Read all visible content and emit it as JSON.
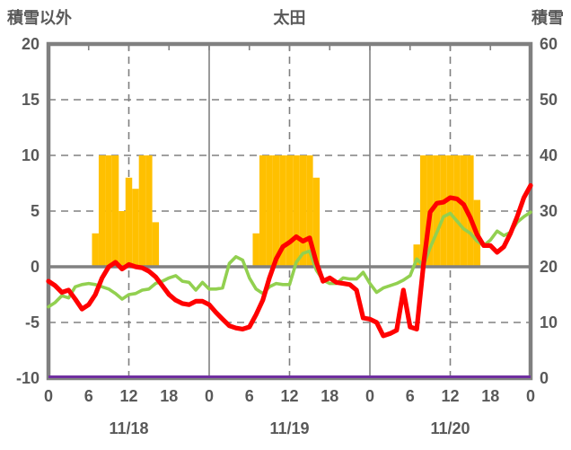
{
  "title": "太田",
  "left_axis": {
    "title": "積雪以外",
    "min": -10,
    "max": 20,
    "ticks": [
      "20",
      "15",
      "10",
      "5",
      "0",
      "-5",
      "-10"
    ],
    "tick_values": [
      20,
      15,
      10,
      5,
      0,
      -5,
      -10
    ]
  },
  "right_axis": {
    "title": "積雪",
    "min": 0,
    "max": 60,
    "ticks": [
      "60",
      "50",
      "40",
      "30",
      "20",
      "10",
      "0"
    ]
  },
  "x_axis": {
    "hour_ticks": [
      "0",
      "6",
      "12",
      "18",
      "0",
      "6",
      "12",
      "18",
      "0",
      "6",
      "12",
      "18",
      "0"
    ],
    "hour_tick_positions": [
      0,
      6,
      12,
      18,
      24,
      30,
      36,
      42,
      48,
      54,
      60,
      66,
      72
    ],
    "date_labels": [
      "11/18",
      "11/19",
      "11/20"
    ],
    "date_label_hours": [
      12,
      36,
      60
    ]
  },
  "colors": {
    "bars_orange": "#FFC000",
    "line_red": "#FF0000",
    "line_green": "#92D050",
    "line_purple": "#7030A0",
    "grid_gray": "#808080",
    "text_gray": "#595959",
    "background": "#FFFFFF"
  },
  "chart_data": {
    "type": "line",
    "x_unit": "hour",
    "x_range_hours": [
      0,
      72
    ],
    "days": [
      "11/18",
      "11/19",
      "11/20"
    ],
    "grid": {
      "h_dashed_at": [
        15,
        10,
        5,
        -5
      ],
      "zero_line_at": 0,
      "v_solid_at_hours": [
        24,
        48
      ],
      "v_dashed_at_hours": [
        12,
        36,
        60
      ]
    },
    "bars": {
      "name": "orange-bars",
      "color": "#FFC000",
      "axis": "left",
      "values": [
        0,
        0,
        0,
        0,
        0,
        0,
        0,
        3,
        10,
        10,
        10,
        5,
        8,
        7,
        10,
        10,
        4,
        0,
        0,
        0,
        0,
        0,
        0,
        0,
        0,
        0,
        0,
        0,
        0,
        0,
        0,
        3,
        10,
        10,
        10,
        10,
        10,
        10,
        10,
        10,
        8,
        0,
        0,
        0,
        0,
        0,
        0,
        0,
        0,
        0,
        0,
        0,
        0,
        0,
        0,
        2,
        10,
        10,
        10,
        10,
        10,
        10,
        10,
        10,
        6,
        0,
        0,
        0,
        0,
        0,
        0,
        0,
        0
      ]
    },
    "series": [
      {
        "name": "red-line",
        "color": "#FF0000",
        "axis": "left",
        "values": [
          -1.3,
          -1.7,
          -2.3,
          -2.1,
          -2.9,
          -3.8,
          -3.4,
          -2.5,
          -1.0,
          0.0,
          0.4,
          -0.2,
          0.2,
          0.0,
          -0.1,
          -0.4,
          -0.9,
          -1.7,
          -2.5,
          -3.0,
          -3.3,
          -3.4,
          -3.1,
          -3.1,
          -3.4,
          -4.1,
          -4.7,
          -5.3,
          -5.5,
          -5.6,
          -5.4,
          -4.3,
          -3.0,
          -1.0,
          0.7,
          1.8,
          2.2,
          2.7,
          2.3,
          2.6,
          0.4,
          -1.3,
          -1.0,
          -1.4,
          -1.5,
          -1.6,
          -2.1,
          -4.6,
          -4.7,
          -5.0,
          -6.2,
          -6.0,
          -5.7,
          -2.1,
          -5.4,
          -5.6,
          0.2,
          4.9,
          5.7,
          5.8,
          6.2,
          6.1,
          5.6,
          4.4,
          2.9,
          1.9,
          1.9,
          1.3,
          1.8,
          3.0,
          4.5,
          6.2,
          7.3
        ]
      },
      {
        "name": "green-line",
        "color": "#92D050",
        "axis": "left",
        "values": [
          -3.6,
          -3.2,
          -2.6,
          -2.8,
          -1.8,
          -1.6,
          -1.5,
          -1.6,
          -1.8,
          -2.0,
          -2.4,
          -2.9,
          -2.5,
          -2.4,
          -2.1,
          -2.0,
          -1.5,
          -1.3,
          -1.0,
          -0.8,
          -1.3,
          -1.4,
          -2.1,
          -1.4,
          -2.0,
          -2.0,
          -1.9,
          0.3,
          0.9,
          0.6,
          -1.0,
          -2.0,
          -2.4,
          -1.8,
          -1.5,
          -1.6,
          -1.6,
          0.4,
          1.2,
          1.4,
          -0.3,
          -1.2,
          -1.5,
          -1.5,
          -1.0,
          -1.1,
          -1.1,
          -0.5,
          -1.5,
          -2.3,
          -1.9,
          -1.7,
          -1.5,
          -1.2,
          -0.8,
          0.7,
          0.1,
          1.7,
          3.1,
          4.5,
          4.8,
          4.1,
          3.4,
          3.0,
          2.3,
          1.9,
          2.4,
          3.2,
          2.8,
          3.1,
          4.0,
          4.5,
          4.9
        ]
      },
      {
        "name": "purple-line",
        "color": "#7030A0",
        "axis": "right",
        "constant_value": 0
      }
    ]
  }
}
